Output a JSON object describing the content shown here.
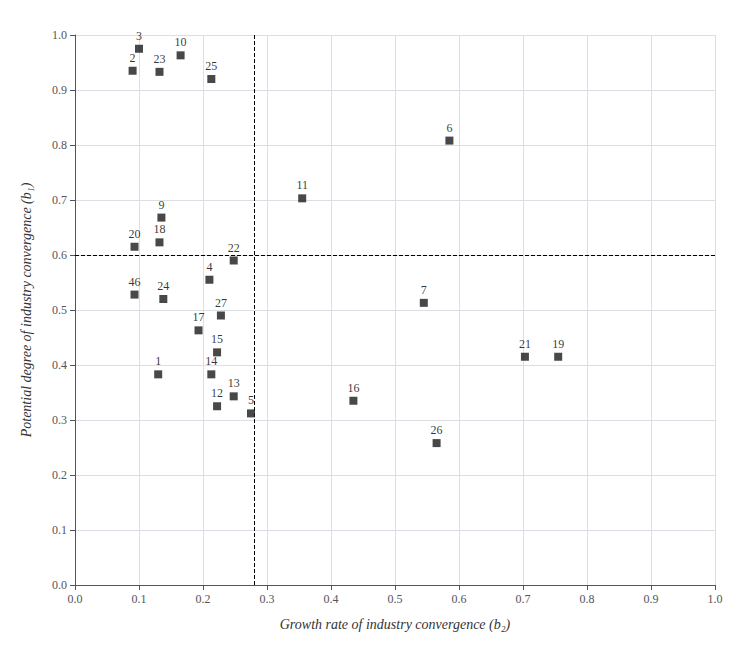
{
  "chart_data": {
    "type": "scatter",
    "x": [
      0.13,
      0.09,
      0.1,
      0.21,
      0.275,
      0.585,
      0.545,
      0.135,
      0.165,
      0.355,
      0.222,
      0.248,
      0.213,
      0.222,
      0.435,
      0.193,
      0.132,
      0.755,
      0.093,
      0.703,
      0.248,
      0.132,
      0.138,
      0.213,
      0.565,
      0.228,
      0.093
    ],
    "values": [
      0.383,
      0.935,
      0.975,
      0.555,
      0.312,
      0.808,
      0.513,
      0.668,
      0.963,
      0.703,
      0.325,
      0.343,
      0.383,
      0.423,
      0.335,
      0.463,
      0.623,
      0.415,
      0.615,
      0.415,
      0.59,
      0.933,
      0.52,
      0.92,
      0.258,
      0.49,
      0.528
    ],
    "labels": [
      "1",
      "2",
      "3",
      "4",
      "5",
      "6",
      "7",
      "9",
      "10",
      "11",
      "12",
      "13",
      "14",
      "15",
      "16",
      "17",
      "18",
      "19",
      "20",
      "21",
      "22",
      "23",
      "24",
      "25",
      "26",
      "27",
      "46"
    ],
    "color": "#1a1a1a",
    "marker": "square",
    "hline": 0.597,
    "vline": 0.278,
    "xlabel": "Growth rate of industry convergence (b₂)",
    "ylabel": "Potential degree of industry convergence (b₁)",
    "xlim": [
      0.0,
      1.0
    ],
    "ylim": [
      0.0,
      1.0
    ],
    "xticks": [
      {
        "value": 0.0,
        "label": "0.0"
      },
      0.1,
      0.2,
      0.3,
      0.4,
      0.5,
      0.6,
      0.7,
      0.8,
      0.9,
      {
        "value": 1.0,
        "label": "1.0"
      }
    ],
    "yticks": [
      {
        "value": 0.0,
        "label": "0.0"
      },
      0.1,
      0.2,
      0.3,
      0.4,
      0.5,
      0.6,
      0.7,
      0.8,
      0.9,
      {
        "value": 1.0,
        "label": "1.0"
      }
    ],
    "grid": true
  }
}
